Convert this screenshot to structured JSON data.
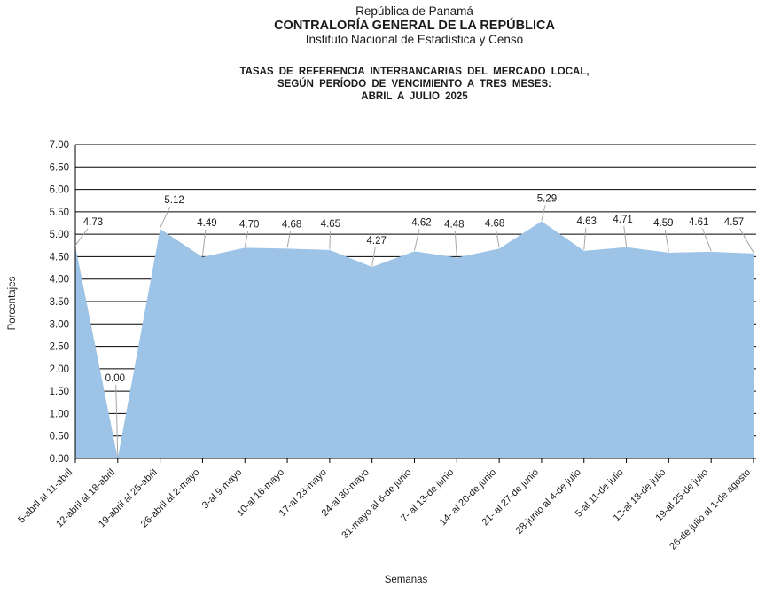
{
  "header": {
    "line1": "República de Panamá",
    "line2": "CONTRALORÍA GENERAL DE LA REPÚBLICA",
    "line3": "Instituto Nacional de Estadística y Censo"
  },
  "chart_title": {
    "line1": "TASAS DE REFERENCIA INTERBANCARIAS DEL MERCADO LOCAL,",
    "line2": "SEGÚN PERÍODO DE VENCIMIENTO A TRES MESES:",
    "line3": "ABRIL A JULIO 2025"
  },
  "chart_data": {
    "type": "area",
    "title": "TASAS DE REFERENCIA INTERBANCARIAS DEL MERCADO LOCAL, SEGÚN PERÍODO DE VENCIMIENTO A TRES MESES: ABRIL A JULIO 2025",
    "categories": [
      "5-abril al 11-abril",
      "12-abril al 18-abril",
      "19-abril al 25-abril",
      "26-abril al 2-mayo",
      "3-al 9-mayo",
      "10-al 16-mayo",
      "17-al 23-mayo",
      "24-al 30-mayo",
      "31-mayo al 6-de junio",
      "7- al 13-de junio",
      "14- al 20-de junio",
      "21- al 27-de junio",
      "28-junio al 4-de julio",
      "5-al 11-de julio",
      "12-al 18-de julio",
      "19-al 25-de julio",
      "26-de julio al 1-de agosto"
    ],
    "values": [
      4.73,
      0.0,
      5.12,
      4.49,
      4.7,
      4.68,
      4.65,
      4.27,
      4.62,
      4.48,
      4.68,
      5.29,
      4.63,
      4.71,
      4.59,
      4.61,
      4.57
    ],
    "value_labels": [
      "4.73",
      "0.00",
      "5.12",
      "4.49",
      "4.70",
      "4.68",
      "4.65",
      "4.27",
      "4.62",
      "4.48",
      "4.68",
      "5.29",
      "4.63",
      "4.71",
      "4.59",
      "4.61",
      "4.57"
    ],
    "xlabel": "Semanas",
    "ylabel": "Porcentajes",
    "ylim": [
      0,
      7
    ],
    "ytick_step": 0.5,
    "ytick_labels": [
      "0.00",
      "0.50",
      "1.00",
      "1.50",
      "2.00",
      "2.50",
      "3.00",
      "3.50",
      "4.00",
      "4.50",
      "5.00",
      "5.50",
      "6.00",
      "6.50",
      "7.00"
    ],
    "grid": true,
    "legend": false,
    "area_color": "#9DC3E6",
    "axis_color": "#000000",
    "leader_line_color": "#A6A6A6",
    "text_color": "#1a1a1a"
  }
}
